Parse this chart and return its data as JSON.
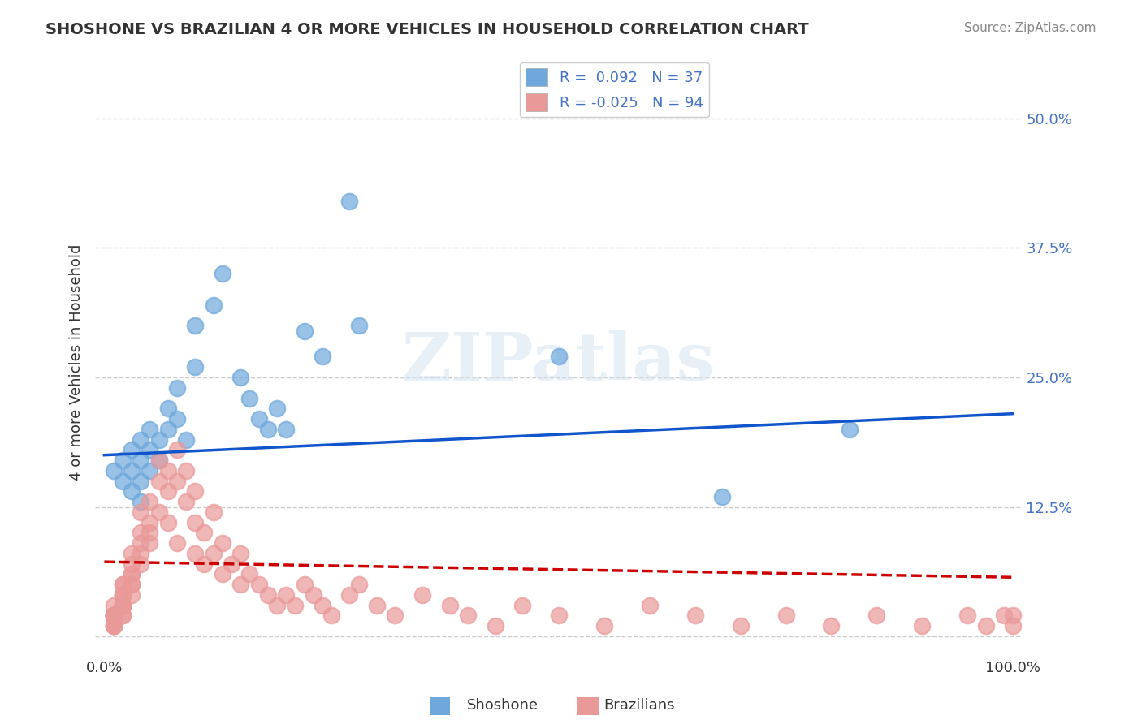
{
  "title": "SHOSHONE VS BRAZILIAN 4 OR MORE VEHICLES IN HOUSEHOLD CORRELATION CHART",
  "source": "Source: ZipAtlas.com",
  "xlabel": "",
  "ylabel": "4 or more Vehicles in Household",
  "xlim": [
    0,
    1.0
  ],
  "ylim": [
    -0.02,
    0.55
  ],
  "x_ticks": [
    0.0,
    1.0
  ],
  "x_tick_labels": [
    "0.0%",
    "100.0%"
  ],
  "y_ticks": [
    0.0,
    0.125,
    0.25,
    0.375,
    0.5
  ],
  "y_tick_labels": [
    "",
    "12.5%",
    "25.0%",
    "37.5%",
    "50.0%"
  ],
  "legend_r1": "R =  0.092   N = 37",
  "legend_r2": "R = -0.025   N = 94",
  "shoshone_color": "#6fa8dc",
  "brazilian_color": "#ea9999",
  "shoshone_line_color": "#1155cc",
  "brazilian_line_color": "#cc0000",
  "watermark": "ZIPatlas",
  "shoshone_x": [
    0.01,
    0.02,
    0.02,
    0.03,
    0.03,
    0.03,
    0.04,
    0.04,
    0.04,
    0.04,
    0.05,
    0.05,
    0.05,
    0.06,
    0.06,
    0.07,
    0.07,
    0.08,
    0.08,
    0.09,
    0.1,
    0.1,
    0.12,
    0.13,
    0.15,
    0.16,
    0.17,
    0.18,
    0.19,
    0.2,
    0.22,
    0.24,
    0.27,
    0.28,
    0.5,
    0.68,
    0.82
  ],
  "shoshone_y": [
    0.16,
    0.17,
    0.15,
    0.18,
    0.16,
    0.14,
    0.19,
    0.17,
    0.15,
    0.13,
    0.2,
    0.18,
    0.16,
    0.19,
    0.17,
    0.22,
    0.2,
    0.24,
    0.21,
    0.19,
    0.3,
    0.26,
    0.32,
    0.35,
    0.25,
    0.23,
    0.21,
    0.2,
    0.22,
    0.2,
    0.295,
    0.27,
    0.42,
    0.3,
    0.27,
    0.135,
    0.2
  ],
  "brazilian_x": [
    0.01,
    0.01,
    0.01,
    0.01,
    0.01,
    0.01,
    0.01,
    0.01,
    0.01,
    0.01,
    0.01,
    0.02,
    0.02,
    0.02,
    0.02,
    0.02,
    0.02,
    0.02,
    0.02,
    0.02,
    0.02,
    0.02,
    0.03,
    0.03,
    0.03,
    0.03,
    0.03,
    0.03,
    0.03,
    0.04,
    0.04,
    0.04,
    0.04,
    0.04,
    0.05,
    0.05,
    0.05,
    0.05,
    0.06,
    0.06,
    0.06,
    0.07,
    0.07,
    0.07,
    0.08,
    0.08,
    0.08,
    0.09,
    0.09,
    0.1,
    0.1,
    0.1,
    0.11,
    0.11,
    0.12,
    0.12,
    0.13,
    0.13,
    0.14,
    0.15,
    0.15,
    0.16,
    0.17,
    0.18,
    0.19,
    0.2,
    0.21,
    0.22,
    0.23,
    0.24,
    0.25,
    0.27,
    0.28,
    0.3,
    0.32,
    0.35,
    0.38,
    0.4,
    0.43,
    0.46,
    0.5,
    0.55,
    0.6,
    0.65,
    0.7,
    0.75,
    0.8,
    0.85,
    0.9,
    0.95,
    0.97,
    0.99,
    1.0,
    1.0
  ],
  "brazilian_y": [
    0.02,
    0.02,
    0.01,
    0.03,
    0.01,
    0.02,
    0.02,
    0.01,
    0.02,
    0.01,
    0.02,
    0.04,
    0.03,
    0.02,
    0.05,
    0.03,
    0.04,
    0.02,
    0.03,
    0.05,
    0.04,
    0.03,
    0.06,
    0.05,
    0.04,
    0.06,
    0.07,
    0.05,
    0.08,
    0.09,
    0.07,
    0.1,
    0.08,
    0.12,
    0.11,
    0.09,
    0.13,
    0.1,
    0.15,
    0.12,
    0.17,
    0.14,
    0.16,
    0.11,
    0.18,
    0.15,
    0.09,
    0.13,
    0.16,
    0.08,
    0.11,
    0.14,
    0.07,
    0.1,
    0.08,
    0.12,
    0.06,
    0.09,
    0.07,
    0.05,
    0.08,
    0.06,
    0.05,
    0.04,
    0.03,
    0.04,
    0.03,
    0.05,
    0.04,
    0.03,
    0.02,
    0.04,
    0.05,
    0.03,
    0.02,
    0.04,
    0.03,
    0.02,
    0.01,
    0.03,
    0.02,
    0.01,
    0.03,
    0.02,
    0.01,
    0.02,
    0.01,
    0.02,
    0.01,
    0.02,
    0.01,
    0.02,
    0.01,
    0.02
  ],
  "background_color": "#ffffff",
  "grid_color": "#cccccc",
  "fig_width": 14.06,
  "fig_height": 8.92,
  "dpi": 100
}
